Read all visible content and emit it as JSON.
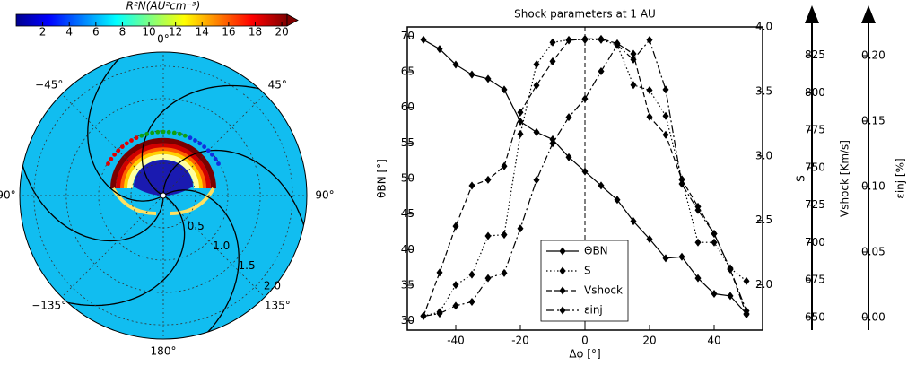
{
  "chart_data": [
    {
      "type": "polar",
      "colorbar": {
        "label": "R²N(AU²cm⁻³)",
        "lim": [
          0,
          20.4
        ],
        "ticks": [
          2,
          4,
          6,
          8,
          10,
          12,
          14,
          16,
          18,
          20
        ]
      },
      "angle_ticks": [
        {
          "value": 0,
          "label": "0°"
        },
        {
          "value": 45,
          "label": "45°"
        },
        {
          "value": 90,
          "label": "90°"
        },
        {
          "value": 135,
          "label": "135°"
        },
        {
          "value": 180,
          "label": "180°"
        },
        {
          "value": -135,
          "label": "−135°"
        },
        {
          "value": -90,
          "label": "−90°"
        },
        {
          "value": -45,
          "label": "−45°"
        }
      ],
      "rlim": [
        0,
        2.22
      ],
      "rticks": [
        0.5,
        {
          "value": 1,
          "label": "1.0"
        },
        1.5,
        {
          "value": 2,
          "label": "2.0"
        }
      ]
    },
    {
      "type": "line",
      "title": "Shock parameters at 1 AU",
      "xlabel": "Δφ [°]",
      "ylabel": "θBN [°]",
      "y2label": "S",
      "y3label": "Vshock [Km/s]",
      "y4label": "εinj [%]",
      "legend": "lower center",
      "x": [
        -50,
        -45,
        -40,
        -35,
        -30,
        -25,
        -20,
        -15,
        -10,
        -5,
        0,
        5,
        10,
        15,
        20,
        25,
        30,
        35,
        40,
        45,
        50
      ],
      "series": [
        {
          "name": "ΘBN",
          "color": "#000000",
          "linestyle": "solid",
          "values": [
            69.5,
            68.2,
            66,
            64.6,
            64,
            62.5,
            58,
            56.5,
            55.5,
            53,
            51,
            49,
            47,
            44,
            41.5,
            38.8,
            39,
            36,
            33.8,
            33.5,
            31
          ]
        },
        {
          "name": "S",
          "color": "#000000",
          "linestyle": "dotted",
          "axis": "y2",
          "values": [
            1.76,
            1.79,
            2.0,
            2.08,
            2.38,
            2.39,
            3.17,
            3.71,
            3.88,
            3.9,
            3.9,
            3.9,
            3.86,
            3.55,
            3.51,
            3.31,
            2.82,
            2.33,
            2.33,
            2.13,
            2.03
          ]
        },
        {
          "name": "Vshock",
          "color": "#000000",
          "linestyle": "dashed",
          "axis": "y3",
          "values": [
            651,
            680,
            711,
            738,
            742,
            751,
            787,
            805,
            821,
            835,
            836,
            836,
            833,
            826,
            784,
            772,
            742,
            724,
            706,
            682,
            652
          ]
        },
        {
          "name": "εinj",
          "color": "#000000",
          "linestyle": "dashdot",
          "axis": "y4",
          "values": [
            0.001,
            0.003,
            0.009,
            0.012,
            0.03,
            0.034,
            0.068,
            0.105,
            0.133,
            0.153,
            0.167,
            0.188,
            0.208,
            0.197,
            0.212,
            0.174,
            0.102,
            0.082,
            0.064,
            0.037,
            0.005
          ]
        }
      ],
      "xlim": [
        -55,
        55
      ],
      "xticks": [
        -40,
        -20,
        0,
        20,
        40
      ],
      "ylim": [
        28.7,
        71.3
      ],
      "yticks": [
        30,
        35,
        40,
        45,
        50,
        55,
        60,
        65,
        70
      ],
      "y2lim": [
        1.65,
        4.0
      ],
      "y2ticks": [
        {
          "value": 2,
          "label": "2.0"
        },
        2.5,
        {
          "value": 3,
          "label": "3.0"
        },
        3.5,
        {
          "value": 4,
          "label": "4.0"
        }
      ],
      "y3lim": [
        641.6,
        844
      ],
      "y3ticks": [
        650,
        675,
        700,
        725,
        750,
        775,
        800,
        825
      ],
      "y4lim": [
        -0.0096,
        0.2219
      ],
      "y4ticks": [
        {
          "value": 0,
          "label": "0.00"
        },
        0.05,
        {
          "value": 0.1,
          "label": "0.10"
        },
        0.15,
        {
          "value": 0.2,
          "label": "0.20"
        }
      ]
    }
  ]
}
